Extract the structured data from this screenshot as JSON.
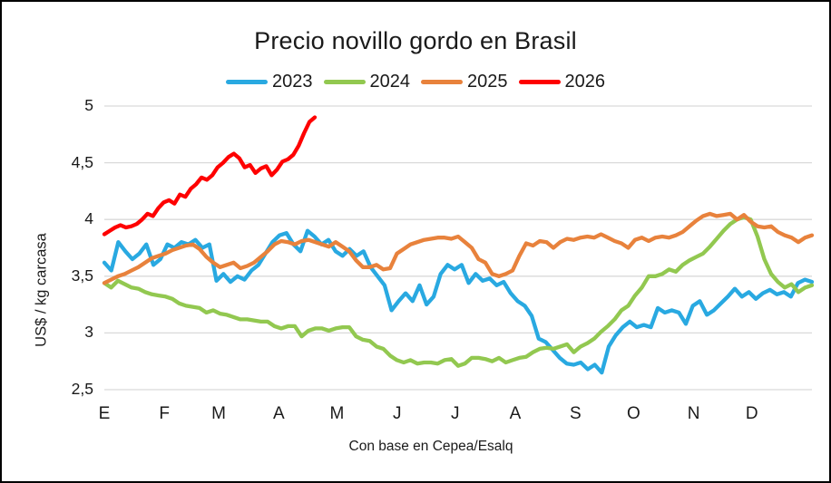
{
  "chart_data": {
    "type": "line",
    "title": "Precio novillo gordo en Brasil",
    "xlabel": "Con base en Cepea/Esalq",
    "ylabel": "US$ / kg carcasa",
    "ylim": [
      2.5,
      5
    ],
    "ytick_values": [
      5,
      4.5,
      4,
      3.5,
      3,
      2.5
    ],
    "ytick_labels": [
      "5",
      "4,5",
      "4",
      "3,5",
      "3",
      "2,5"
    ],
    "x_months": [
      "E",
      "F",
      "M",
      "A",
      "M",
      "J",
      "J",
      "A",
      "S",
      "O",
      "N",
      "D"
    ],
    "grid": "horizontal-only",
    "legend_position": "top",
    "grid_color": "#D9D9D9",
    "series": [
      {
        "name": "2023",
        "color": "#29A9E1",
        "x_start_month": 0,
        "x_end_month": 12,
        "values": [
          3.62,
          3.55,
          3.8,
          3.72,
          3.65,
          3.7,
          3.78,
          3.6,
          3.65,
          3.78,
          3.75,
          3.8,
          3.78,
          3.82,
          3.75,
          3.78,
          3.46,
          3.52,
          3.45,
          3.5,
          3.47,
          3.55,
          3.6,
          3.7,
          3.8,
          3.86,
          3.88,
          3.78,
          3.72,
          3.9,
          3.85,
          3.78,
          3.82,
          3.72,
          3.68,
          3.74,
          3.68,
          3.72,
          3.58,
          3.5,
          3.42,
          3.2,
          3.28,
          3.35,
          3.28,
          3.42,
          3.25,
          3.32,
          3.52,
          3.6,
          3.56,
          3.6,
          3.44,
          3.52,
          3.46,
          3.48,
          3.42,
          3.45,
          3.35,
          3.28,
          3.24,
          3.15,
          2.95,
          2.92,
          2.85,
          2.78,
          2.73,
          2.72,
          2.74,
          2.68,
          2.72,
          2.65,
          2.88,
          2.98,
          3.05,
          3.1,
          3.05,
          3.07,
          3.05,
          3.22,
          3.18,
          3.2,
          3.18,
          3.08,
          3.24,
          3.28,
          3.16,
          3.2,
          3.26,
          3.32,
          3.39,
          3.32,
          3.36,
          3.3,
          3.35,
          3.38,
          3.34,
          3.36,
          3.32,
          3.44,
          3.47,
          3.45
        ]
      },
      {
        "name": "2024",
        "color": "#92C850",
        "x_start_month": 0,
        "x_end_month": 12,
        "values": [
          3.44,
          3.4,
          3.46,
          3.43,
          3.4,
          3.39,
          3.36,
          3.34,
          3.33,
          3.32,
          3.3,
          3.26,
          3.24,
          3.23,
          3.22,
          3.18,
          3.2,
          3.17,
          3.16,
          3.14,
          3.12,
          3.12,
          3.11,
          3.1,
          3.1,
          3.06,
          3.04,
          3.06,
          3.06,
          2.97,
          3.02,
          3.04,
          3.04,
          3.02,
          3.04,
          3.05,
          3.05,
          2.97,
          2.94,
          2.93,
          2.88,
          2.86,
          2.8,
          2.76,
          2.74,
          2.76,
          2.73,
          2.74,
          2.74,
          2.73,
          2.76,
          2.77,
          2.71,
          2.73,
          2.78,
          2.78,
          2.77,
          2.75,
          2.78,
          2.74,
          2.76,
          2.78,
          2.79,
          2.83,
          2.86,
          2.87,
          2.86,
          2.88,
          2.9,
          2.83,
          2.88,
          2.91,
          2.95,
          3.01,
          3.06,
          3.12,
          3.2,
          3.24,
          3.33,
          3.4,
          3.5,
          3.5,
          3.52,
          3.56,
          3.54,
          3.6,
          3.64,
          3.67,
          3.7,
          3.76,
          3.83,
          3.9,
          3.96,
          4.0,
          4.02,
          4.0,
          3.85,
          3.65,
          3.52,
          3.45,
          3.4,
          3.43,
          3.36,
          3.4,
          3.42
        ]
      },
      {
        "name": "2025",
        "color": "#E8823C",
        "x_start_month": 0,
        "x_end_month": 12,
        "values": [
          3.44,
          3.47,
          3.5,
          3.52,
          3.55,
          3.58,
          3.62,
          3.66,
          3.68,
          3.7,
          3.73,
          3.75,
          3.77,
          3.78,
          3.74,
          3.67,
          3.62,
          3.58,
          3.6,
          3.62,
          3.57,
          3.59,
          3.62,
          3.67,
          3.72,
          3.78,
          3.81,
          3.8,
          3.78,
          3.81,
          3.82,
          3.8,
          3.78,
          3.76,
          3.8,
          3.76,
          3.72,
          3.64,
          3.58,
          3.58,
          3.6,
          3.56,
          3.57,
          3.7,
          3.74,
          3.78,
          3.8,
          3.82,
          3.83,
          3.84,
          3.84,
          3.83,
          3.85,
          3.8,
          3.75,
          3.65,
          3.62,
          3.52,
          3.5,
          3.52,
          3.55,
          3.68,
          3.79,
          3.77,
          3.81,
          3.8,
          3.75,
          3.8,
          3.83,
          3.82,
          3.84,
          3.85,
          3.84,
          3.87,
          3.84,
          3.81,
          3.79,
          3.75,
          3.82,
          3.84,
          3.81,
          3.84,
          3.85,
          3.84,
          3.86,
          3.89,
          3.94,
          3.99,
          4.03,
          4.05,
          4.03,
          4.04,
          4.05,
          4.0,
          4.04,
          3.98,
          3.94,
          3.93,
          3.94,
          3.89,
          3.86,
          3.84,
          3.8,
          3.84,
          3.86
        ]
      },
      {
        "name": "2026",
        "color": "#FE0000",
        "x_start_month": 0,
        "x_end_month": 3.57,
        "values": [
          3.87,
          3.9,
          3.93,
          3.95,
          3.93,
          3.94,
          3.96,
          4.0,
          4.05,
          4.03,
          4.1,
          4.15,
          4.17,
          4.14,
          4.22,
          4.2,
          4.27,
          4.31,
          4.37,
          4.35,
          4.39,
          4.46,
          4.5,
          4.55,
          4.58,
          4.54,
          4.46,
          4.48,
          4.41,
          4.45,
          4.47,
          4.39,
          4.44,
          4.51,
          4.53,
          4.57,
          4.65,
          4.76,
          4.86,
          4.9
        ]
      }
    ]
  }
}
